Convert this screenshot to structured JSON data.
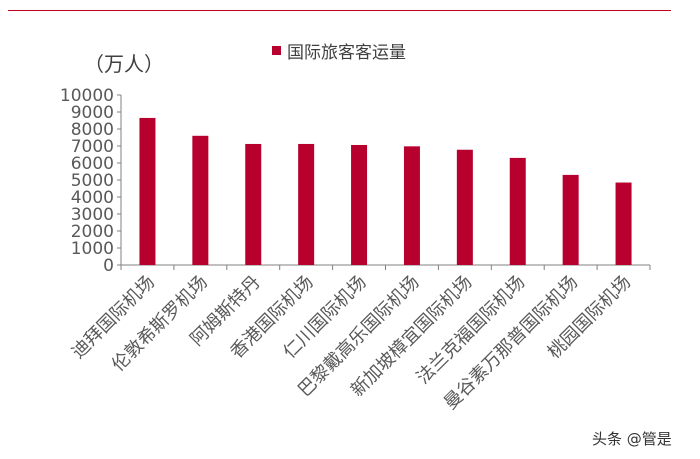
{
  "unit_label": "（万人）",
  "watermark": "头条 @管是",
  "colors": {
    "bar": "#b8002e",
    "rule": "#c0001e",
    "axis": "#808080"
  },
  "chart_data": {
    "type": "bar",
    "title": "",
    "xlabel": "",
    "ylabel": "（万人）",
    "ylim": [
      0,
      10000
    ],
    "yticks": [
      0,
      1000,
      2000,
      3000,
      4000,
      5000,
      6000,
      7000,
      8000,
      9000,
      10000
    ],
    "grid": false,
    "legend_position": "top",
    "categories": [
      "迪拜国际机场",
      "伦敦希斯罗机场",
      "阿姆斯特丹",
      "香港国际机场",
      "仁川国际机场",
      "巴黎戴高乐国际机场",
      "新加坡樟宜国际机场",
      "法兰克福国际机场",
      "曼谷素万那普国际机场",
      "桃园国际机场"
    ],
    "series": [
      {
        "name": "国际旅客客运量",
        "values": [
          8650,
          7600,
          7120,
          7120,
          7060,
          6980,
          6780,
          6300,
          5300,
          4850
        ]
      }
    ]
  }
}
